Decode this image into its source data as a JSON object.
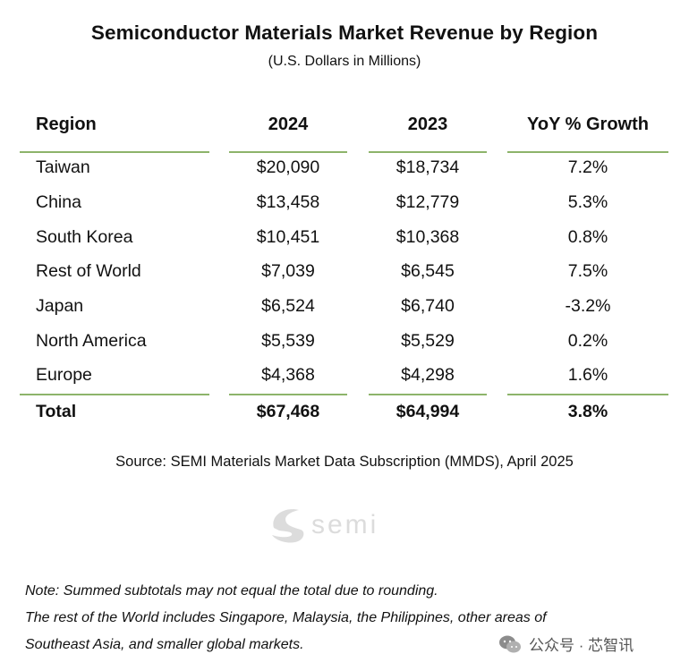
{
  "title": "Semiconductor Materials Market Revenue by Region",
  "subtitle": "(U.S. Dollars in Millions)",
  "colors": {
    "rule": "#8db46a",
    "logo": "#d9d9d9"
  },
  "table": {
    "headers": [
      "Region",
      "2024",
      "2023",
      "YoY % Growth"
    ],
    "rows": [
      [
        "Taiwan",
        "$20,090",
        "$18,734",
        "7.2%"
      ],
      [
        "China",
        "$13,458",
        "$12,779",
        "5.3%"
      ],
      [
        "South Korea",
        "$10,451",
        "$10,368",
        "0.8%"
      ],
      [
        "Rest of World",
        "$7,039",
        "$6,545",
        "7.5%"
      ],
      [
        "Japan",
        "$6,524",
        "$6,740",
        "-3.2%"
      ],
      [
        "North America",
        "$5,539",
        "$5,529",
        "0.2%"
      ],
      [
        "Europe",
        "$4,368",
        "$4,298",
        "1.6%"
      ]
    ],
    "total": [
      "Total",
      "$67,468",
      "$64,994",
      "3.8%"
    ]
  },
  "source": "Source: SEMI Materials Market Data Subscription (MMDS), April 2025",
  "logo_text": "semi",
  "notes": [
    "Note: Summed subtotals may not equal the total due to rounding.",
    "The rest of the World includes Singapore, Malaysia, the Philippines, other areas of",
    "Southeast Asia, and smaller global markets."
  ],
  "watermark": "公众号 · 芯智讯"
}
